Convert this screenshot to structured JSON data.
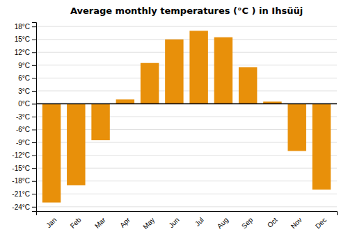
{
  "chart_data": {
    "type": "bar",
    "title": "Average monthly temperatures (°C ) in Ihsüüj",
    "categories": [
      "Jan",
      "Feb",
      "Mar",
      "Apr",
      "May",
      "Jun",
      "Jul",
      "Aug",
      "Sep",
      "Oct",
      "Nov",
      "Dec"
    ],
    "values": [
      -23,
      -19,
      -8.5,
      1,
      9.5,
      15,
      17,
      15.5,
      8.5,
      0.5,
      -11,
      -20
    ],
    "color": "#E8900A",
    "ylim": [
      -25,
      19
    ],
    "yticks": [
      {
        "value": -24,
        "label": "-24°C"
      },
      {
        "value": -21,
        "label": "-21°C"
      },
      {
        "value": -18,
        "label": "-18°C"
      },
      {
        "value": -15,
        "label": "-15°C"
      },
      {
        "value": -12,
        "label": "-12°C"
      },
      {
        "value": -9,
        "label": "-9°C"
      },
      {
        "value": -6,
        "label": "-6°C"
      },
      {
        "value": -3,
        "label": "-3°C"
      },
      {
        "value": 0,
        "label": "0°C"
      },
      {
        "value": 3,
        "label": "3°C"
      },
      {
        "value": 6,
        "label": "6°C"
      },
      {
        "value": 9,
        "label": "9°C"
      },
      {
        "value": 12,
        "label": "12°C"
      },
      {
        "value": 15,
        "label": "15°C"
      },
      {
        "value": 18,
        "label": "18°C"
      }
    ],
    "grid": true
  }
}
